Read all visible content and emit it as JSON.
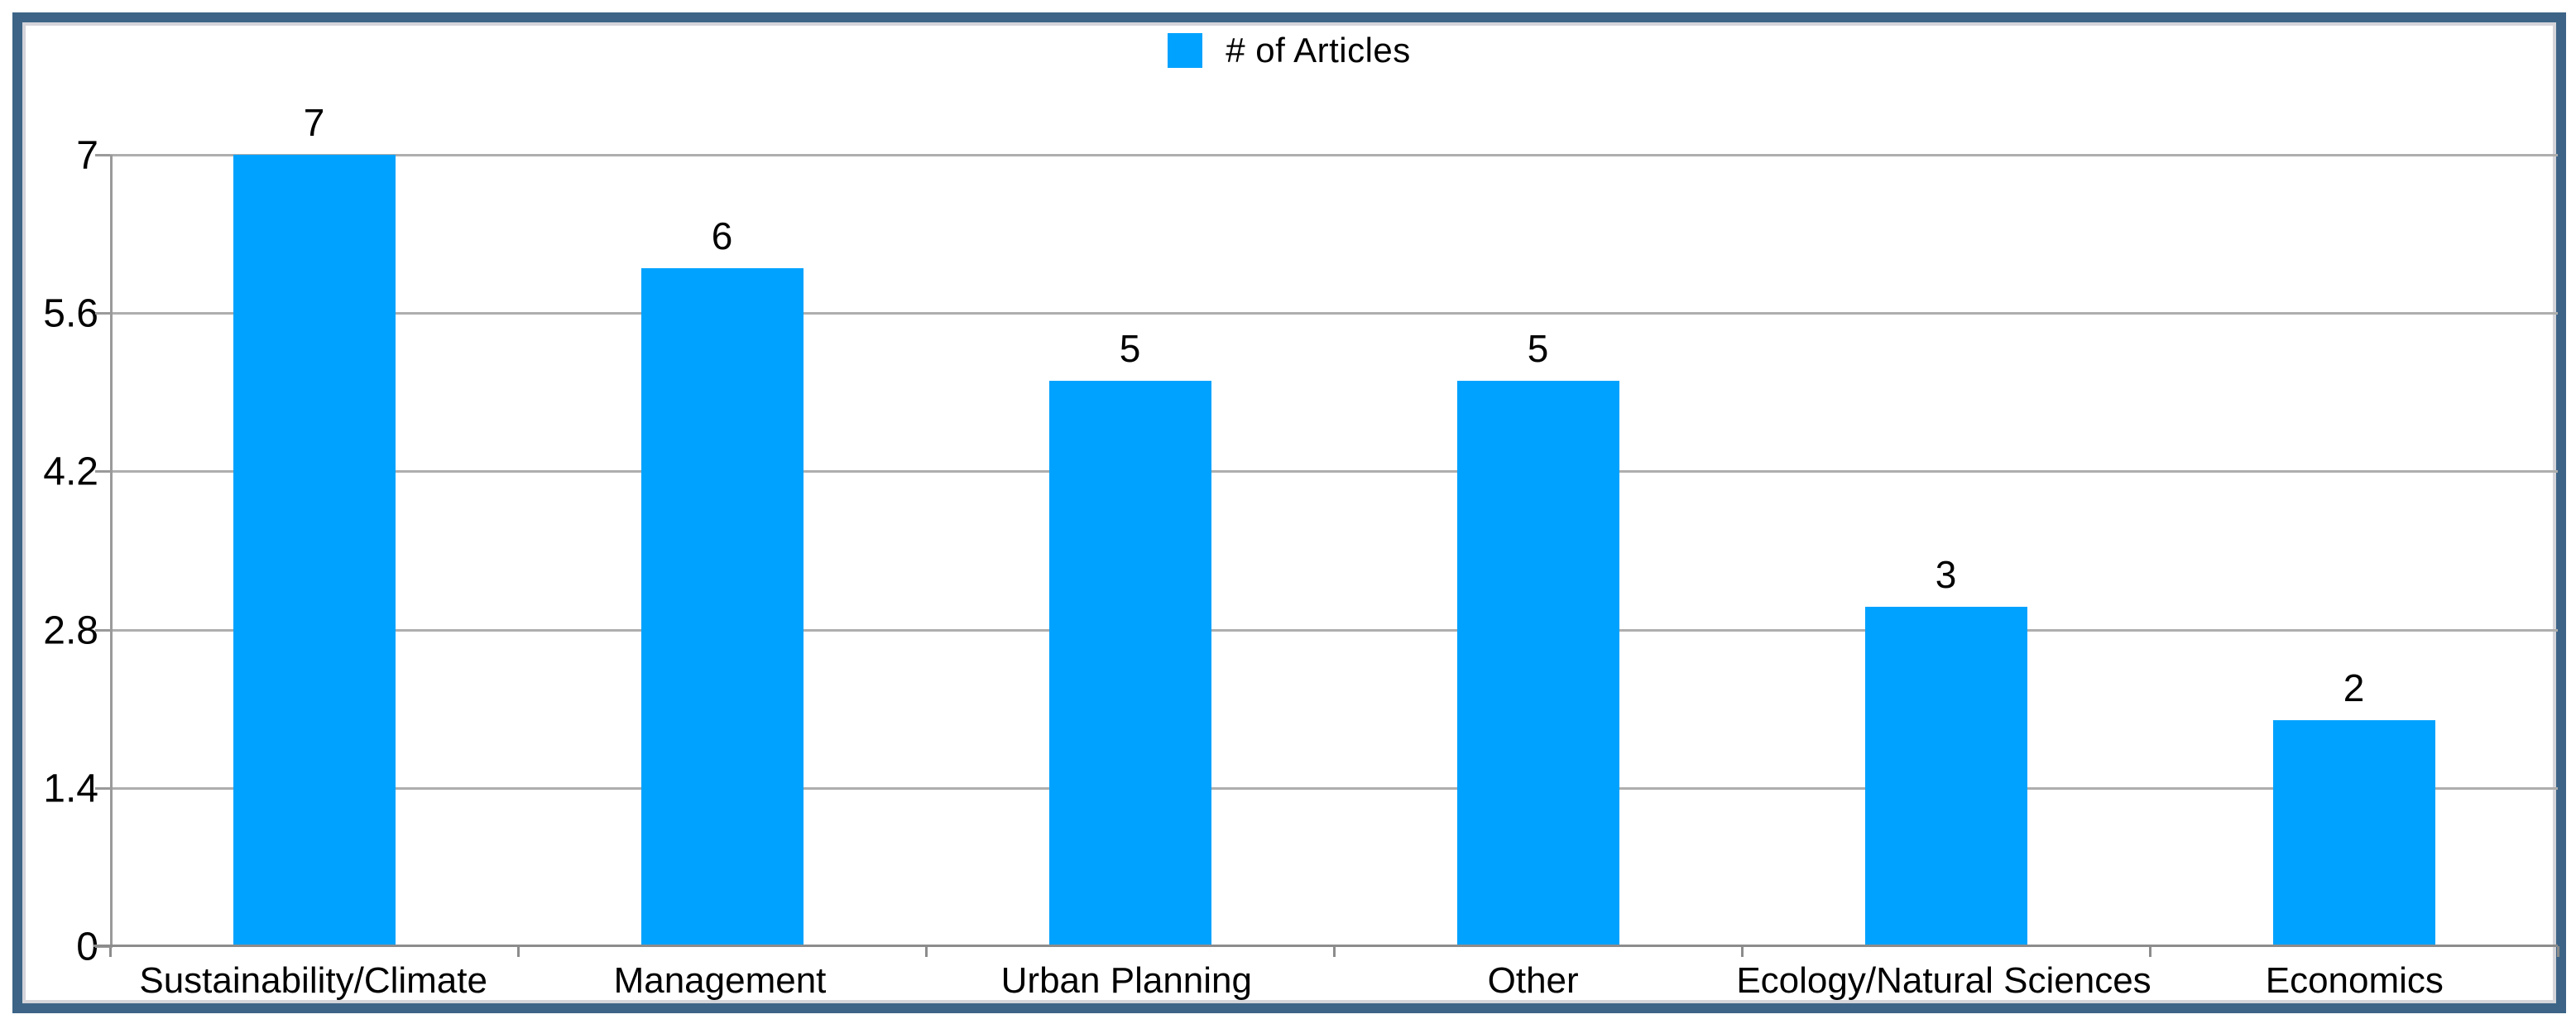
{
  "legend": {
    "label": "# of Articles"
  },
  "chart_data": {
    "type": "bar",
    "title": "",
    "xlabel": "",
    "ylabel": "",
    "categories": [
      "Sustainability/Climate",
      "Management",
      "Urban Planning",
      "Other",
      "Ecology/Natural Sciences",
      "Economics"
    ],
    "values": [
      7,
      6,
      5,
      5,
      3,
      2
    ],
    "data_labels": [
      "7",
      "6",
      "5",
      "5",
      "3",
      "2"
    ],
    "series_name": "# of Articles",
    "ylim": [
      0,
      7
    ],
    "yticks": [
      0,
      1.4,
      2.8,
      4.2,
      5.6,
      7
    ],
    "ytick_labels": [
      "0",
      "1.4",
      "2.8",
      "4.2",
      "5.6",
      "7"
    ],
    "grid": true,
    "legend_position": "top-center",
    "bar_color": "#00a2ff",
    "frame_color": "#3d6487",
    "gridline_color": "#aeaeae"
  }
}
